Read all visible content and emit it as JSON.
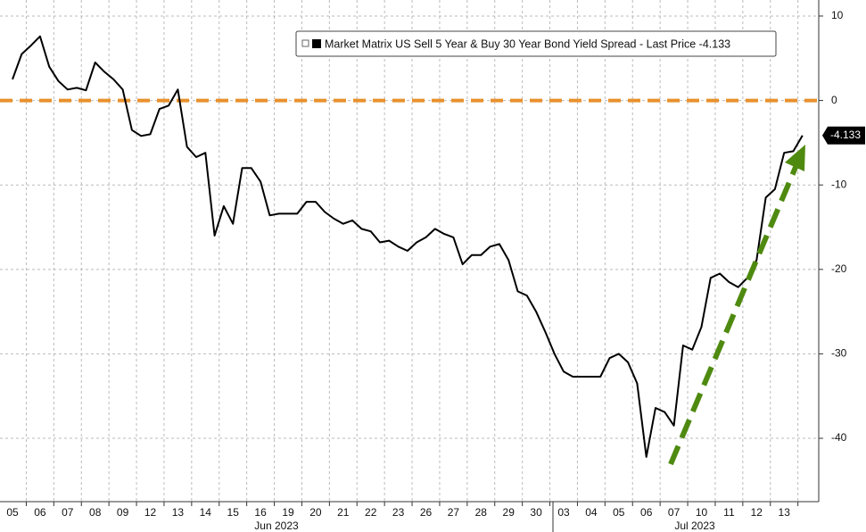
{
  "chart_data": {
    "type": "line",
    "categories": [
      "05",
      null,
      null,
      "06",
      null,
      null,
      "07",
      null,
      null,
      "08",
      null,
      null,
      "09",
      null,
      null,
      "12",
      null,
      null,
      "13",
      null,
      null,
      "14",
      null,
      null,
      "15",
      null,
      null,
      "16",
      null,
      null,
      "19",
      null,
      null,
      "20",
      null,
      null,
      "21",
      null,
      null,
      "22",
      null,
      null,
      "23",
      null,
      null,
      "26",
      null,
      null,
      "27",
      null,
      null,
      "28",
      null,
      null,
      "29",
      null,
      null,
      "30",
      null,
      null,
      "03",
      null,
      null,
      "04",
      null,
      null,
      "05",
      null,
      null,
      "06",
      null,
      null,
      "07",
      null,
      null,
      "10",
      null,
      null,
      "11",
      null,
      null,
      "12",
      null,
      null,
      "13",
      null,
      null
    ],
    "x_group_labels": [
      "Jun 2023",
      "Jul 2023"
    ],
    "series": [
      {
        "name": "Market Matrix US Sell 5 Year & Buy 30 Year Bond Yield Spread - Last Price -4.133",
        "color": "#000000",
        "values": [
          2.5,
          5.5,
          6.5,
          7.6,
          4,
          2.3,
          1.3,
          1.5,
          1.2,
          4.5,
          3.4,
          2.5,
          1.3,
          -3.5,
          -4.2,
          -4,
          -1,
          -0.6,
          1.3,
          -5.5,
          -6.7,
          -6.2,
          -16,
          -12.5,
          -14.6,
          -8,
          -8,
          -9.6,
          -13.6,
          -13.4,
          -13.4,
          -13.4,
          -12,
          -12,
          -13.2,
          -14,
          -14.6,
          -14.2,
          -15.2,
          -15.5,
          -16.8,
          -16.6,
          -17.3,
          -17.8,
          -16.8,
          -16.2,
          -15.2,
          -15.8,
          -16.2,
          -19.4,
          -18.3,
          -18.3,
          -17.3,
          -17,
          -18.9,
          -22.6,
          -23.1,
          -25,
          -27.4,
          -30,
          -32.1,
          -32.7,
          -32.7,
          -32.7,
          -32.7,
          -30.5,
          -30,
          -31,
          -33.5,
          -42.2,
          -36.4,
          -36.9,
          -38.5,
          -29,
          -29.5,
          -26.8,
          -21,
          -20.5,
          -21.5,
          -22.1,
          -21,
          -18.9,
          -11.5,
          -10.5,
          -6.2,
          -6,
          -4.133
        ]
      }
    ],
    "ylim": [
      -47.5,
      11.9
    ],
    "yticks": [
      10,
      0,
      -10,
      -20,
      -30,
      -40
    ],
    "grid": true,
    "reference_line": {
      "value": 0,
      "color": "#e8912d"
    },
    "trend_arrow_color": "#4f8a10"
  }
}
